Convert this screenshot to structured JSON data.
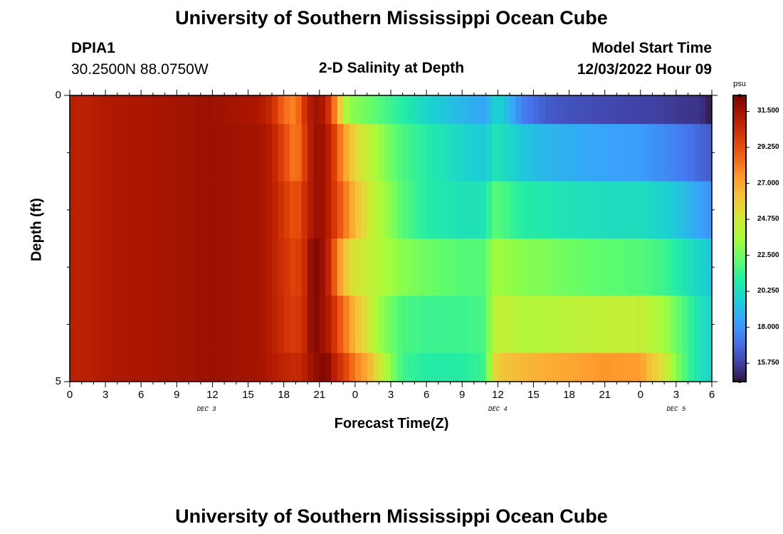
{
  "header": {
    "title": "University of Southern Mississippi Ocean Cube",
    "station_id": "DPIA1",
    "station_coords": "30.2500N  88.0750W",
    "plot_title": "2-D Salinity at Depth",
    "model_start_label": "Model Start Time",
    "model_start_value": "12/03/2022 Hour 09"
  },
  "footer": {
    "title": "University of Southern Mississippi Ocean Cube"
  },
  "colors": {
    "palette": [
      "#30123b",
      "#4145ab",
      "#4675ed",
      "#39a2fc",
      "#1bcfd4",
      "#24eca6",
      "#61fc6c",
      "#a4fc3b",
      "#d1e834",
      "#f3c63a",
      "#fe9b2d",
      "#f36315",
      "#d93806",
      "#b11901",
      "#7a0403"
    ]
  },
  "chart_data": {
    "type": "heatmap",
    "title": "2-D Salinity at Depth",
    "xlabel": "Forecast Time(Z)",
    "ylabel": "Depth (ft)",
    "colorbar_unit": "psu",
    "colorbar_ticks": [
      "31.500",
      "29.250",
      "27.000",
      "24.750",
      "22.500",
      "20.250",
      "18.000",
      "15.750"
    ],
    "colorbar_tick_values": [
      31.5,
      29.25,
      27.0,
      24.75,
      22.5,
      20.25,
      18.0,
      15.75
    ],
    "color_range": [
      14.6,
      32.5
    ],
    "x_tick_labels": [
      "0",
      "3",
      "6",
      "9",
      "12",
      "15",
      "18",
      "21",
      "0",
      "3",
      "6",
      "9",
      "12",
      "15",
      "18",
      "21",
      "0",
      "3",
      "6"
    ],
    "x_range_hours": [
      0,
      54
    ],
    "date_labels": [
      {
        "text": "DEC 3",
        "hour": 11.5
      },
      {
        "text": "DEC 4",
        "hour": 36
      },
      {
        "text": "DEC 5",
        "hour": 51
      }
    ],
    "y_tick_labels": [
      "0",
      "5"
    ],
    "y_range": [
      0,
      5
    ],
    "depth_levels": [
      0.25,
      1.25,
      2.25,
      3.25,
      4.25,
      5.0
    ],
    "level_boundaries": [
      0,
      0.5,
      1.5,
      2.5,
      3.5,
      4.5,
      5
    ],
    "time_knots": [
      0,
      1,
      3,
      12,
      16,
      17,
      18,
      19,
      19.5,
      20,
      20.5,
      21,
      21.5,
      22,
      22.5,
      23,
      23.5,
      24,
      25,
      26,
      27,
      28,
      30,
      33,
      35,
      35.5,
      36,
      37,
      38,
      40,
      42,
      45,
      48,
      49,
      50,
      51,
      52,
      53,
      53.9,
      54
    ],
    "salinity_levels": [
      [
        31.0,
        30.9,
        31.2,
        31.7,
        31.3,
        30.5,
        28.5,
        27.8,
        29.5,
        30.8,
        31.6,
        31.6,
        31.0,
        29.5,
        27.0,
        24.5,
        23.2,
        23.0,
        22.5,
        22.0,
        21.5,
        21.0,
        20.0,
        19.0,
        18.5,
        19.5,
        20.0,
        19.0,
        17.5,
        16.5,
        16.2,
        16.0,
        15.8,
        15.8,
        15.7,
        15.6,
        15.5,
        15.5,
        14.8,
        14.8
      ],
      [
        31.0,
        30.9,
        31.2,
        31.7,
        31.5,
        31.0,
        29.5,
        28.0,
        29.0,
        30.5,
        31.6,
        31.8,
        31.5,
        30.5,
        29.0,
        27.5,
        26.5,
        25.5,
        24.5,
        23.5,
        22.5,
        21.8,
        21.0,
        20.0,
        19.5,
        20.5,
        20.5,
        20.0,
        19.5,
        19.0,
        18.8,
        18.5,
        18.3,
        18.0,
        17.8,
        17.5,
        17.2,
        16.8,
        16.5,
        16.5
      ],
      [
        31.0,
        30.9,
        31.2,
        31.7,
        31.5,
        31.0,
        30.0,
        29.0,
        29.8,
        30.8,
        31.6,
        31.8,
        31.5,
        30.5,
        29.5,
        28.5,
        27.5,
        26.5,
        25.0,
        24.0,
        23.0,
        22.0,
        21.0,
        20.5,
        20.5,
        22.0,
        22.0,
        21.5,
        21.0,
        20.8,
        20.5,
        20.3,
        20.3,
        20.1,
        19.8,
        19.5,
        19.0,
        18.5,
        18.0,
        18.0
      ],
      [
        31.0,
        30.9,
        31.2,
        31.7,
        31.5,
        31.0,
        30.2,
        29.5,
        30.0,
        31.0,
        32.5,
        32.0,
        31.5,
        30.0,
        28.0,
        26.5,
        25.5,
        25.0,
        24.5,
        24.0,
        23.5,
        23.0,
        22.5,
        22.0,
        22.0,
        23.5,
        23.5,
        23.2,
        23.0,
        22.8,
        22.5,
        22.2,
        22.0,
        21.8,
        21.5,
        21.0,
        20.5,
        20.0,
        19.5,
        19.5
      ],
      [
        31.0,
        30.9,
        31.2,
        31.7,
        31.5,
        31.0,
        30.3,
        29.8,
        30.2,
        31.0,
        32.5,
        31.8,
        31.5,
        30.8,
        29.5,
        28.5,
        27.5,
        26.5,
        25.0,
        23.5,
        22.5,
        21.8,
        21.5,
        21.5,
        21.8,
        24.0,
        24.5,
        24.3,
        24.0,
        24.0,
        24.2,
        24.4,
        24.5,
        24.0,
        23.5,
        22.5,
        21.5,
        20.5,
        20.0,
        20.0
      ],
      [
        31.0,
        30.9,
        31.2,
        31.7,
        31.5,
        31.2,
        30.8,
        30.5,
        30.8,
        31.2,
        31.8,
        32.0,
        32.5,
        31.5,
        30.5,
        30.0,
        29.0,
        28.0,
        27.0,
        25.0,
        23.0,
        21.5,
        21.0,
        21.0,
        21.5,
        25.0,
        26.0,
        26.3,
        26.5,
        26.8,
        27.0,
        27.5,
        27.3,
        26.0,
        25.0,
        23.0,
        21.5,
        20.5,
        20.0,
        20.0
      ]
    ]
  }
}
